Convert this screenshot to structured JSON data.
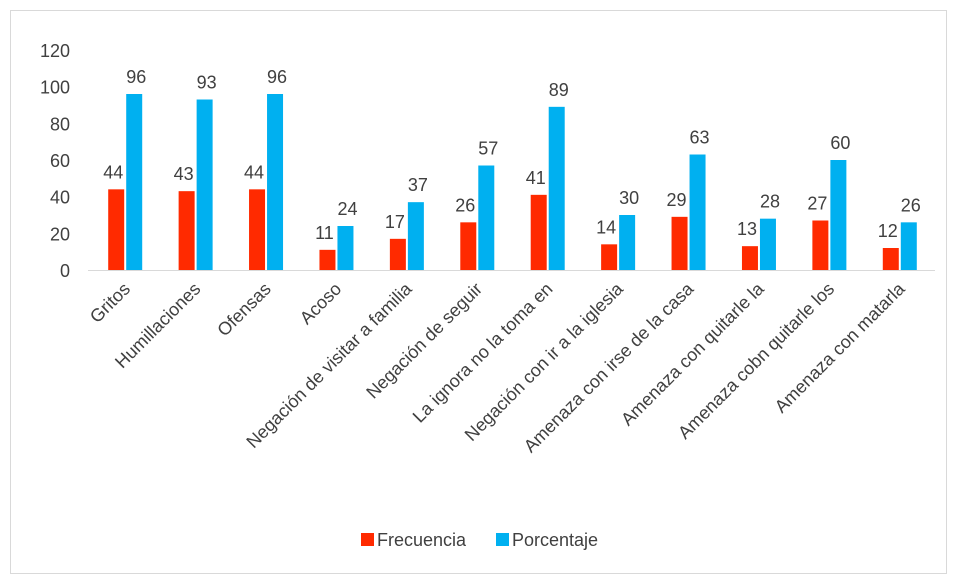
{
  "chart_data": {
    "type": "bar",
    "title": "",
    "xlabel": "",
    "ylabel": "",
    "ylim": [
      0,
      120
    ],
    "yticks": [
      0,
      20,
      40,
      60,
      80,
      100,
      120
    ],
    "grid": false,
    "legend_position": "bottom",
    "categories": [
      "Gritos",
      "Humillaciones",
      "Ofensas",
      "Acoso",
      "Negación de visitar a familia",
      "Negación de seguir",
      "La ignora no la toma en",
      "Negación con ir a la iglesia",
      "Amenaza con irse de la casa",
      "Amenaza con quitarle la",
      "Amenaza cobn quitarle los",
      "Amenaza con matarla"
    ],
    "series": [
      {
        "name": "Frecuencia",
        "color": "#ff2a00",
        "values": [
          44,
          43,
          44,
          11,
          17,
          26,
          41,
          14,
          29,
          13,
          27,
          12
        ]
      },
      {
        "name": "Porcentaje",
        "color": "#00b0f0",
        "values": [
          96,
          93,
          96,
          24,
          37,
          57,
          89,
          30,
          63,
          28,
          60,
          26
        ]
      }
    ]
  }
}
